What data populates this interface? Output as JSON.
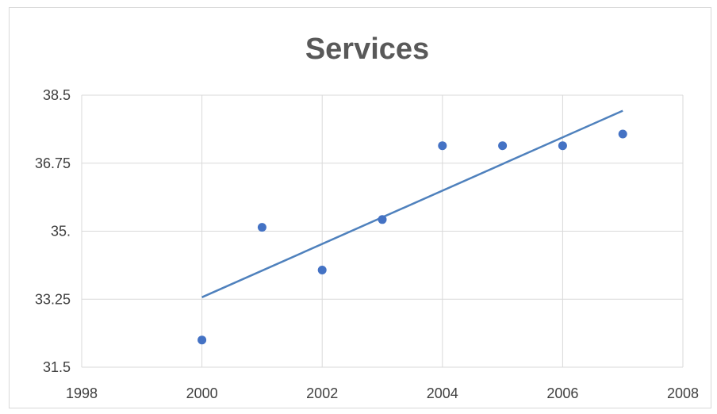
{
  "chart_data": {
    "type": "scatter",
    "title": "Services",
    "xlabel": "",
    "ylabel": "",
    "xlim": [
      1998,
      2008
    ],
    "ylim": [
      31.5,
      38.5
    ],
    "x_ticks": [
      "1998",
      "2000",
      "2002",
      "2004",
      "2006",
      "2008"
    ],
    "y_ticks": [
      "38.5",
      "36.75",
      "35.",
      "33.25",
      "31.5"
    ],
    "y_tick_values": [
      38.5,
      36.75,
      35.0,
      33.25,
      31.5
    ],
    "grid": true,
    "legend": "none",
    "series": [
      {
        "x": [
          2000,
          2001,
          2002,
          2003,
          2004,
          2005,
          2006,
          2007
        ],
        "y": [
          32.2,
          35.1,
          34.0,
          35.3,
          37.2,
          37.2,
          37.2,
          37.5
        ],
        "color": "#4472c4"
      }
    ],
    "trendline": {
      "type": "linear",
      "x": [
        2000,
        2007
      ],
      "y": [
        33.3,
        38.1
      ],
      "color": "#4f81bd"
    }
  }
}
